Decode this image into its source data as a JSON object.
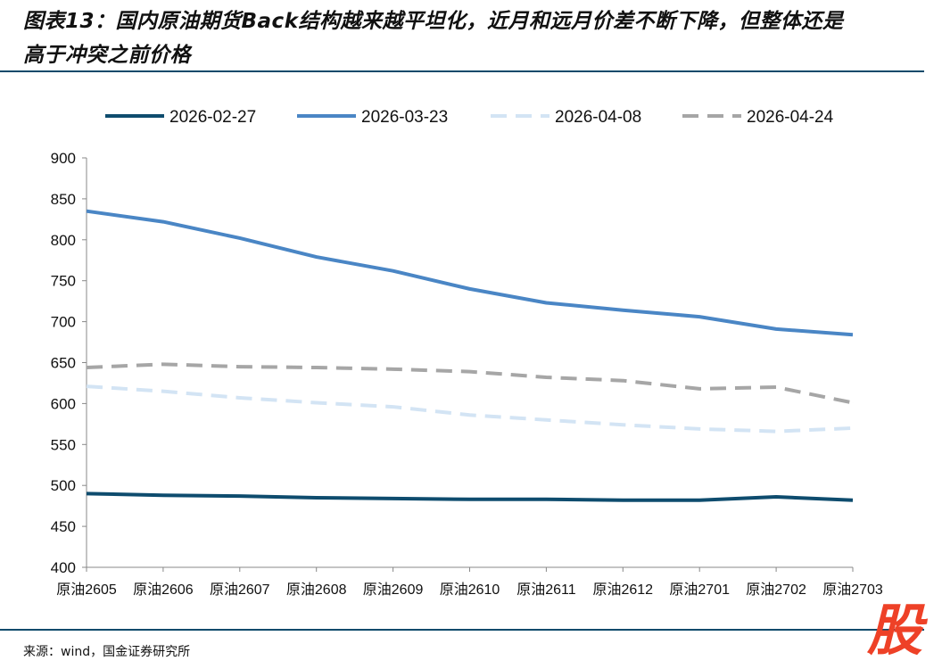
{
  "title_line1": "图表13：国内原油期货Back结构越来越平坦化，近月和远月价差不断下降，但整体还是",
  "title_line2": "高于冲突之前价格",
  "source": "来源：wind，国金证券研究所",
  "logo_text": "股",
  "chart_data": {
    "type": "line",
    "title": "图表13：国内原油期货Back结构越来越平坦化，近月和远月价差不断下降，但整体还是高于冲突之前价格",
    "xlabel": "",
    "ylabel": "",
    "ylim": [
      400,
      900
    ],
    "yticks": [
      400,
      450,
      500,
      550,
      600,
      650,
      700,
      750,
      800,
      850,
      900
    ],
    "grid": false,
    "legend_position": "top",
    "categories": [
      "原油2605",
      "原油2606",
      "原油2607",
      "原油2608",
      "原油2609",
      "原油2610",
      "原油2611",
      "原油2612",
      "原油2701",
      "原油2702",
      "原油2703"
    ],
    "series": [
      {
        "name": "2026-02-27",
        "color": "#0e4c6e",
        "style": "solid",
        "values": [
          490,
          488,
          487,
          485,
          484,
          483,
          483,
          482,
          482,
          486,
          482
        ]
      },
      {
        "name": "2026-03-23",
        "color": "#4a86c5",
        "style": "solid",
        "values": [
          835,
          822,
          802,
          779,
          762,
          740,
          723,
          714,
          706,
          691,
          684
        ]
      },
      {
        "name": "2026-04-08",
        "color": "#d3e4f4",
        "style": "dashed",
        "values": [
          621,
          615,
          607,
          601,
          596,
          586,
          580,
          574,
          569,
          566,
          570
        ]
      },
      {
        "name": "2026-04-24",
        "color": "#a6a6a6",
        "style": "dashed",
        "values": [
          644,
          648,
          645,
          644,
          642,
          639,
          632,
          628,
          618,
          620,
          601
        ]
      }
    ]
  }
}
